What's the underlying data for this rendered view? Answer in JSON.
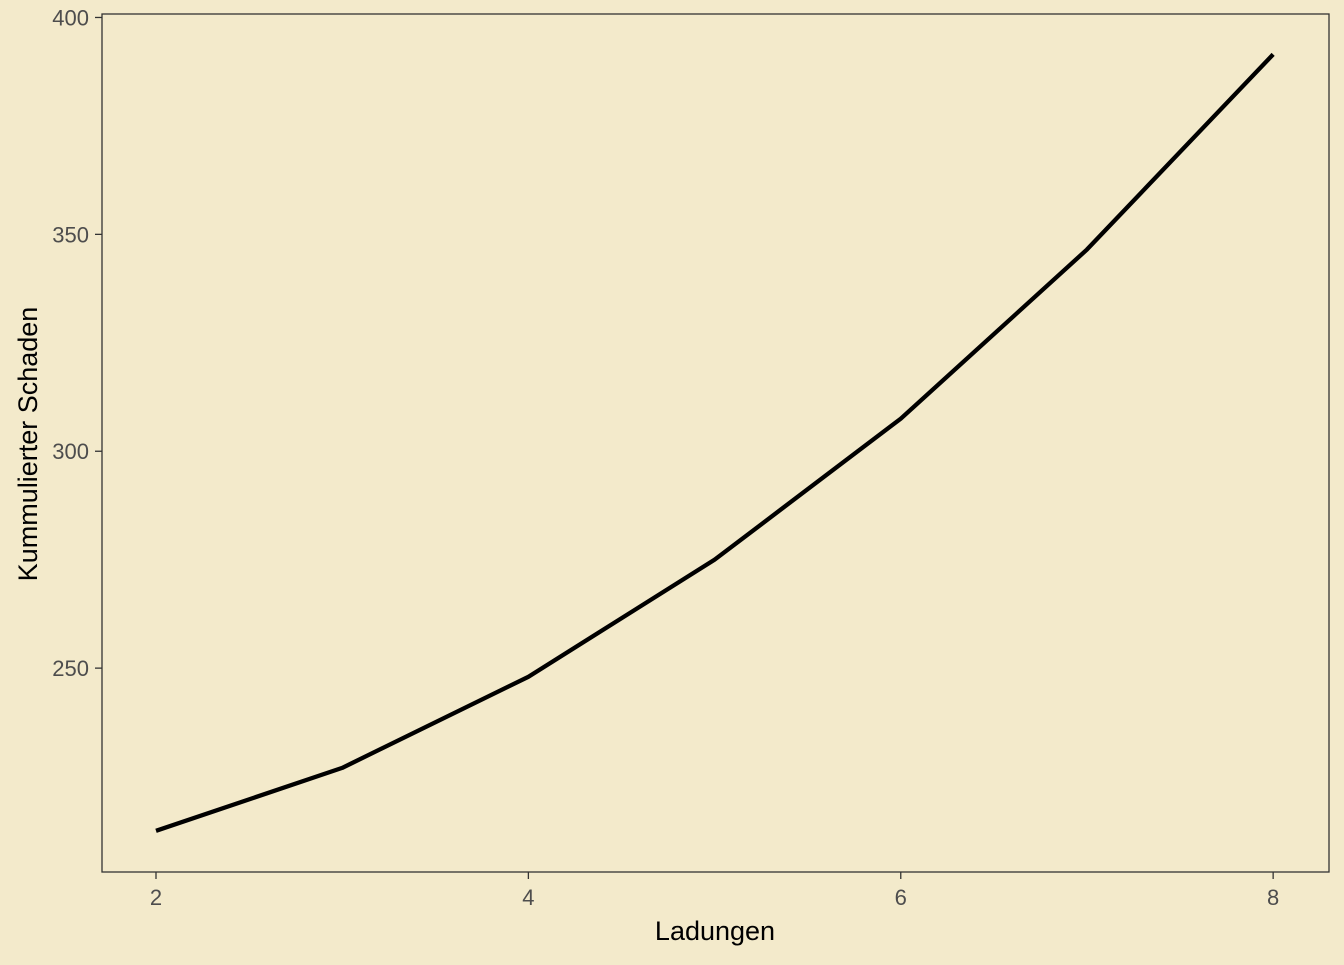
{
  "chart_data": {
    "type": "line",
    "title": "",
    "xlabel": "Ladungen",
    "ylabel": "Kummulierter Schaden",
    "x": [
      2,
      3,
      4,
      5,
      6,
      7,
      8
    ],
    "series": [
      {
        "values": [
          212.5,
          227.0,
          248.0,
          275.0,
          307.5,
          346.5,
          391.5
        ]
      }
    ],
    "xlim": [
      1.71,
      8.3
    ],
    "ylim": [
      203,
      400.8
    ],
    "xticks": [
      "2",
      "4",
      "6",
      "8"
    ],
    "yticks": [
      "250",
      "300",
      "350",
      "400"
    ],
    "grid": false,
    "legend": "none"
  },
  "colors": {
    "background": "#F3EACB",
    "line": "#000000",
    "axis": "#333333",
    "tick_text": "#4D4D4D"
  }
}
